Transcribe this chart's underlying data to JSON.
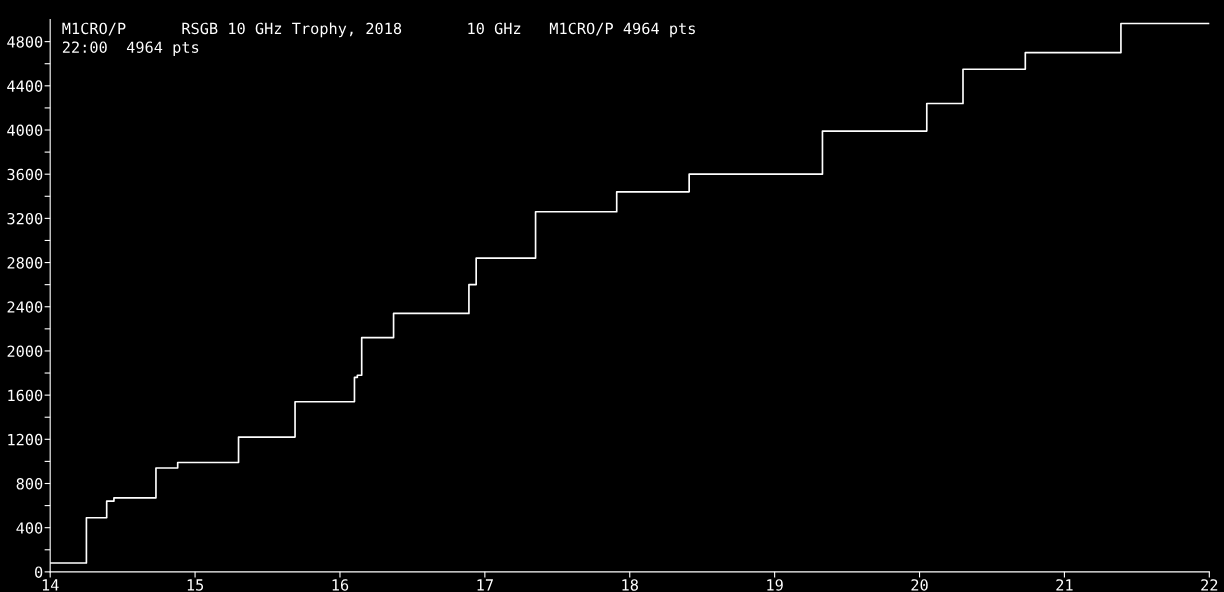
{
  "chart_data": {
    "type": "step",
    "title": "M1CRO/P      RSGB 10 GHz Trophy, 2018       10 GHz   M1CRO/P 4964 pts",
    "annotations": [
      "22:00  4964 pts"
    ],
    "x": [
      14,
      14.25,
      14.39,
      14.44,
      14.73,
      14.88,
      15.3,
      15.69,
      16.1,
      16.12,
      16.15,
      16.37,
      16.89,
      16.94,
      17.35,
      17.91,
      18.41,
      19.33,
      20.05,
      20.3,
      20.73,
      21.39,
      22
    ],
    "series": [
      {
        "color": "#ffffff",
        "values": [
          80,
          490,
          640,
          670,
          940,
          990,
          1220,
          1540,
          1760,
          1780,
          2120,
          2340,
          2600,
          2840,
          3260,
          3440,
          3600,
          3990,
          4240,
          4550,
          4700,
          4964,
          4964
        ]
      }
    ],
    "xlim": [
      14,
      22
    ],
    "xticks": [
      14,
      15,
      16,
      17,
      18,
      19,
      20,
      21,
      22
    ],
    "ylim": [
      0,
      5000
    ],
    "yticks": [
      0,
      {
        "value": 200,
        "label": null
      },
      400,
      {
        "value": 600,
        "label": null
      },
      800,
      {
        "value": 1000,
        "label": null
      },
      1200,
      {
        "value": 1400,
        "label": null
      },
      1600,
      {
        "value": 1800,
        "label": null
      },
      2000,
      {
        "value": 2200,
        "label": null
      },
      2400,
      {
        "value": 2600,
        "label": null
      },
      2800,
      {
        "value": 3000,
        "label": null
      },
      3200,
      {
        "value": 3400,
        "label": null
      },
      3600,
      {
        "value": 3800,
        "label": null
      },
      4000,
      {
        "value": 4200,
        "label": null
      },
      4400,
      {
        "value": 4600,
        "label": null
      },
      4800
    ],
    "grid": false,
    "legend": false,
    "line_style": "solid",
    "marker": "none"
  }
}
